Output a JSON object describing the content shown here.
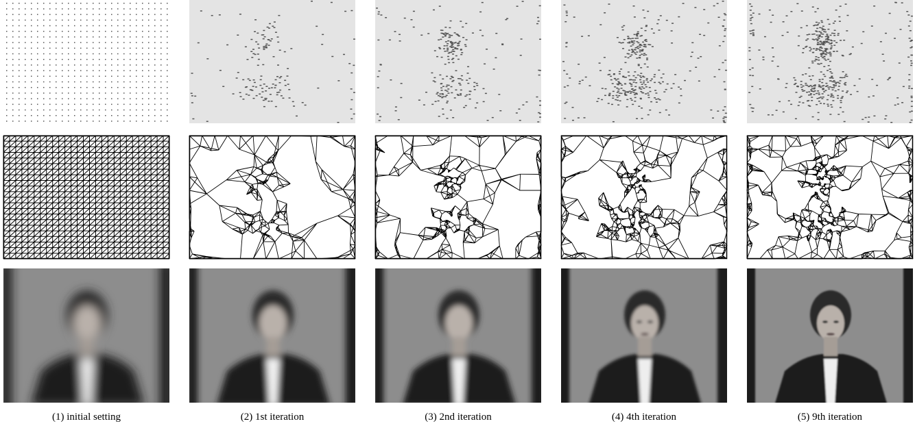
{
  "figure": {
    "captions": [
      "(1) initial setting",
      "(2) 1st iteration",
      "(3) 2nd iteration",
      "(4) 4th iteration",
      "(5) 9th iteration"
    ]
  }
}
